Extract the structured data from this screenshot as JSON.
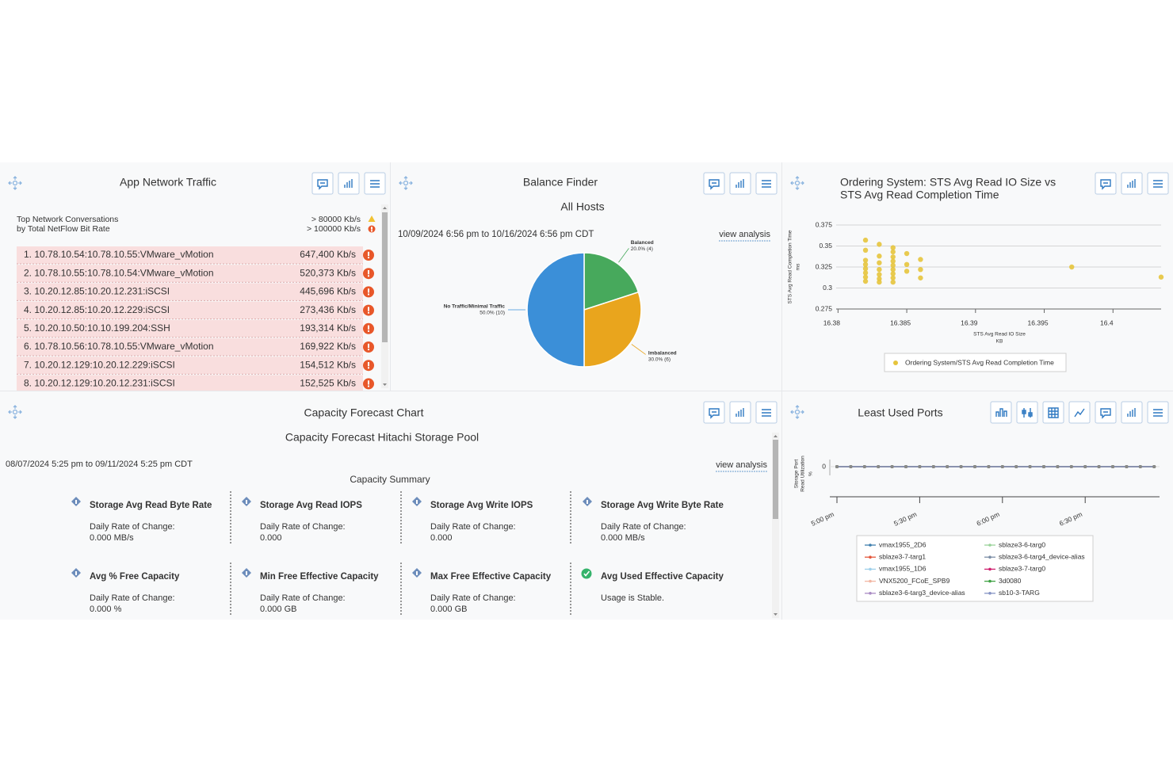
{
  "app_network_traffic": {
    "title": "App Network Traffic",
    "caption": [
      "Top Network Conversations",
      "by Total NetFlow Bit Rate"
    ],
    "thresholds": [
      "> 80000 Kb/s",
      "> 100000 Kb/s"
    ],
    "rows": [
      [
        "1. 10.78.10.54:10.78.10.55:VMware_vMotion",
        "647,400 Kb/s"
      ],
      [
        "2. 10.78.10.55:10.78.10.54:VMware_vMotion",
        "520,373 Kb/s"
      ],
      [
        "3. 10.20.12.85:10.20.12.231:iSCSI",
        "445,696 Kb/s"
      ],
      [
        "4. 10.20.12.85:10.20.12.229:iSCSI",
        "273,436 Kb/s"
      ],
      [
        "5. 10.20.10.50:10.10.199.204:SSH",
        "193,314 Kb/s"
      ],
      [
        "6. 10.78.10.56:10.78.10.55:VMware_vMotion",
        "169,922 Kb/s"
      ],
      [
        "7. 10.20.12.129:10.20.12.229:iSCSI",
        "154,512 Kb/s"
      ],
      [
        "8. 10.20.12.129:10.20.12.231:iSCSI",
        "152,525 Kb/s"
      ]
    ]
  },
  "balance_finder": {
    "title": "Balance Finder",
    "subtitle": "All Hosts",
    "date_range": "10/09/2024 6:56 pm to 10/16/2024 6:56 pm CDT",
    "link": "view analysis",
    "chart_data": {
      "type": "pie",
      "categories": [
        "Balanced",
        "Imbalanced",
        "No Traffic/Minimal Traffic"
      ],
      "values": [
        20,
        30,
        50
      ],
      "value_labels": [
        "20.0% (4)",
        "30.0% (6)",
        "50.0% (10)"
      ],
      "colors": [
        "#47a95c",
        "#e9a51d",
        "#3b8fd8"
      ]
    }
  },
  "ordering_system": {
    "title": [
      "Ordering System: STS Avg Read IO Size vs",
      "STS Avg Read Completion Time"
    ],
    "chart_data": {
      "type": "scatter",
      "xlabel": "STS Avg Read IO Size",
      "xunit": "KB",
      "ylabel": "STS Avg Read Completion Time",
      "yunit": "ms",
      "x": [
        16.382,
        16.382,
        16.382,
        16.382,
        16.382,
        16.382,
        16.382,
        16.382,
        16.383,
        16.383,
        16.383,
        16.383,
        16.383,
        16.383,
        16.383,
        16.384,
        16.384,
        16.384,
        16.384,
        16.384,
        16.384,
        16.384,
        16.384,
        16.384,
        16.385,
        16.385,
        16.385,
        16.386,
        16.386,
        16.386,
        16.397,
        16.4035
      ],
      "series": [
        {
          "name": "Ordering System/STS Avg Read Completion Time",
          "color": "#e6c43c",
          "values": [
            0.357,
            0.345,
            0.333,
            0.328,
            0.323,
            0.318,
            0.313,
            0.308,
            0.352,
            0.338,
            0.33,
            0.322,
            0.316,
            0.311,
            0.307,
            0.348,
            0.343,
            0.337,
            0.332,
            0.327,
            0.322,
            0.317,
            0.312,
            0.307,
            0.341,
            0.328,
            0.32,
            0.334,
            0.322,
            0.312,
            0.325,
            0.313
          ]
        }
      ],
      "xlim": [
        16.379,
        16.4035
      ],
      "xticks": [
        16.38,
        16.385,
        16.39,
        16.395,
        16.4
      ],
      "ylim": [
        0.275,
        0.375
      ],
      "yticks": [
        0.275,
        0.3,
        0.325,
        0.35,
        0.375
      ],
      "grid": true
    }
  },
  "capacity_forecast": {
    "title": "Capacity Forecast Chart",
    "subtitle": "Capacity Forecast Hitachi Storage Pool",
    "date_range": "08/07/2024 5:25 pm to 09/11/2024 5:25 pm CDT",
    "link": "view analysis",
    "summary_title": "Capacity Summary",
    "items": [
      {
        "name": "Storage Avg Read Byte Rate",
        "label": "Daily Rate of Change:",
        "value": "0.000 MB/s"
      },
      {
        "name": "Storage Avg Read IOPS",
        "label": "Daily Rate of Change:",
        "value": "0.000"
      },
      {
        "name": "Storage Avg Write IOPS",
        "label": "Daily Rate of Change:",
        "value": "0.000"
      },
      {
        "name": "Storage Avg Write Byte Rate",
        "label": "Daily Rate of Change:",
        "value": "0.000 MB/s"
      },
      {
        "name": "Avg % Free Capacity",
        "label": "Daily Rate of Change:",
        "value": "0.000 %"
      },
      {
        "name": "Min Free Effective Capacity",
        "label": "Daily Rate of Change:",
        "value": "0.000 GB"
      },
      {
        "name": "Max Free Effective Capacity",
        "label": "Daily Rate of Change:",
        "value": "0.000 GB"
      },
      {
        "name": "Avg Used Effective Capacity",
        "status": "Usage is Stable."
      }
    ]
  },
  "least_used_ports": {
    "title": "Least Used Ports",
    "chart_data": {
      "type": "line",
      "ylabel": [
        "Storage Port",
        "Read Utilization"
      ],
      "yunit": "%",
      "categories": [
        "5:00 pm",
        null,
        null,
        null,
        null,
        null,
        "5:30 pm",
        null,
        null,
        null,
        null,
        null,
        "6:00 pm",
        null,
        null,
        null,
        null,
        null,
        "6:30 pm",
        null,
        null,
        null,
        null,
        null
      ],
      "ylim": [
        -2,
        1
      ],
      "yticks": [
        0
      ],
      "series": [
        {
          "name": "vmax1955_2D6",
          "color": "#3f7fae",
          "values": [
            0,
            0,
            0,
            0,
            0,
            0,
            0,
            0,
            0,
            0,
            0,
            0,
            0,
            0,
            0,
            0,
            0,
            0,
            0,
            0,
            0,
            0,
            0,
            0
          ]
        },
        {
          "name": "sblaze3-7-targ1",
          "color": "#e4573c",
          "values": [
            0,
            0,
            0,
            0,
            0,
            0,
            0,
            0,
            0,
            0,
            0,
            0,
            0,
            0,
            0,
            0,
            0,
            0,
            0,
            0,
            0,
            0,
            0,
            0
          ]
        },
        {
          "name": "vmax1955_1D6",
          "color": "#9fd0ea",
          "values": [
            0,
            0,
            0,
            0,
            0,
            0,
            0,
            0,
            0,
            0,
            0,
            0,
            0,
            0,
            0,
            0,
            0,
            0,
            0,
            0,
            0,
            0,
            0,
            0
          ]
        },
        {
          "name": "VNX5200_FCoE_SPB9",
          "color": "#f2b7a4",
          "values": [
            0,
            0,
            0,
            0,
            0,
            0,
            0,
            0,
            0,
            0,
            0,
            0,
            0,
            0,
            0,
            0,
            0,
            0,
            0,
            0,
            0,
            0,
            0,
            0
          ]
        },
        {
          "name": "sblaze3-6-targ3_device-alias",
          "color": "#a98bc4",
          "values": [
            0,
            0,
            0,
            0,
            0,
            0,
            0,
            0,
            0,
            0,
            0,
            0,
            0,
            0,
            0,
            0,
            0,
            0,
            0,
            0,
            0,
            0,
            0,
            0
          ]
        },
        {
          "name": "sblaze3-6-targ0",
          "color": "#9ad39a",
          "values": [
            0,
            0,
            0,
            0,
            0,
            0,
            0,
            0,
            0,
            0,
            0,
            0,
            0,
            0,
            0,
            0,
            0,
            0,
            0,
            0,
            0,
            0,
            0,
            0
          ]
        },
        {
          "name": "sblaze3-6-targ4_device-alias",
          "color": "#7c8ea6",
          "values": [
            0,
            0,
            0,
            0,
            0,
            0,
            0,
            0,
            0,
            0,
            0,
            0,
            0,
            0,
            0,
            0,
            0,
            0,
            0,
            0,
            0,
            0,
            0,
            0
          ]
        },
        {
          "name": "sblaze3-7-targ0",
          "color": "#cf1f6e",
          "values": [
            0,
            0,
            0,
            0,
            0,
            0,
            0,
            0,
            0,
            0,
            0,
            0,
            0,
            0,
            0,
            0,
            0,
            0,
            0,
            0,
            0,
            0,
            0,
            0
          ]
        },
        {
          "name": "3d0080",
          "color": "#3fa244",
          "values": [
            0,
            0,
            0,
            0,
            0,
            0,
            0,
            0,
            0,
            0,
            0,
            0,
            0,
            0,
            0,
            0,
            0,
            0,
            0,
            0,
            0,
            0,
            0,
            0
          ]
        },
        {
          "name": "sb10-3-TARG",
          "color": "#8593c4",
          "values": [
            0,
            0,
            0,
            0,
            0,
            0,
            0,
            0,
            0,
            0,
            0,
            0,
            0,
            0,
            0,
            0,
            0,
            0,
            0,
            0,
            0,
            0,
            0,
            0
          ]
        }
      ]
    }
  }
}
